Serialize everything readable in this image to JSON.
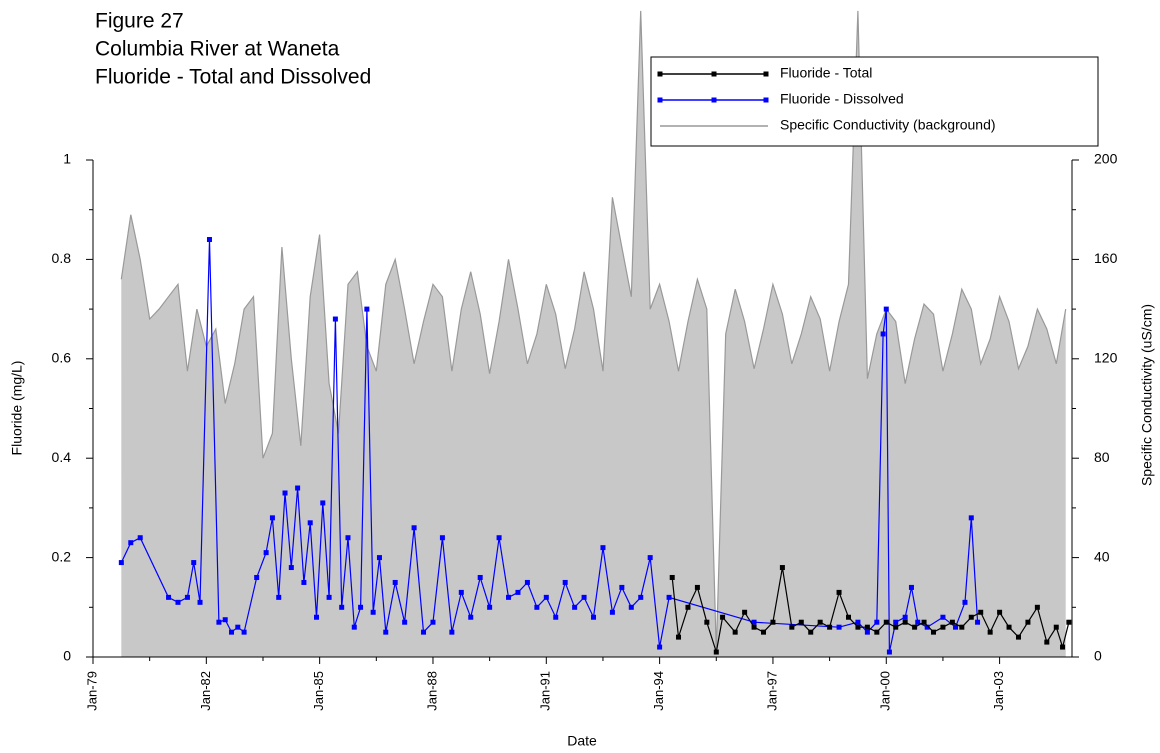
{
  "chart_data": {
    "type": "line",
    "title": [
      "Figure 27",
      "Columbia River at Waneta",
      "Fluoride - Total and Dissolved"
    ],
    "x_label": "Date",
    "y_label": "Fluoride (mg/L)",
    "y2_label": "Specific Conductivity (uS/cm)",
    "xlim": [
      "1979-01",
      "2004-12"
    ],
    "xticks": [
      {
        "value": "1979-01",
        "label": "Jan-79"
      },
      {
        "value": "1982-01",
        "label": "Jan-82"
      },
      {
        "value": "1985-01",
        "label": "Jan-85"
      },
      {
        "value": "1988-01",
        "label": "Jan-88"
      },
      {
        "value": "1991-01",
        "label": "Jan-91"
      },
      {
        "value": "1994-01",
        "label": "Jan-94"
      },
      {
        "value": "1997-01",
        "label": "Jan-97"
      },
      {
        "value": "2000-01",
        "label": "Jan-00"
      },
      {
        "value": "2003-01",
        "label": "Jan-03"
      }
    ],
    "ylim": [
      0,
      1
    ],
    "yticks": [
      0,
      0.2,
      0.4,
      0.6,
      0.8,
      1
    ],
    "y2lim": [
      0,
      200
    ],
    "y2ticks": [
      0,
      40,
      80,
      120,
      160,
      200
    ],
    "series": [
      {
        "name": "Fluoride - Total",
        "color": "#000000",
        "style": "line-marker",
        "x": [
          "1994-05",
          "1994-07",
          "1994-10",
          "1995-01",
          "1995-04",
          "1995-07",
          "1995-09",
          "1996-01",
          "1996-04",
          "1996-07",
          "1996-10",
          "1997-01",
          "1997-04",
          "1997-07",
          "1997-10",
          "1998-01",
          "1998-04",
          "1998-07",
          "1998-10",
          "1999-01",
          "1999-04",
          "1999-07",
          "1999-10",
          "2000-01",
          "2000-04",
          "2000-07",
          "2000-10",
          "2001-01",
          "2001-04",
          "2001-07",
          "2001-10",
          "2002-01",
          "2002-04",
          "2002-07",
          "2002-10",
          "2003-01",
          "2003-04",
          "2003-07",
          "2003-10",
          "2004-01",
          "2004-04",
          "2004-07",
          "2004-09",
          "2004-11"
        ],
        "values": [
          0.16,
          0.04,
          0.1,
          0.14,
          0.07,
          0.01,
          0.08,
          0.05,
          0.09,
          0.06,
          0.05,
          0.07,
          0.18,
          0.06,
          0.07,
          0.05,
          0.07,
          0.06,
          0.13,
          0.08,
          0.06,
          0.06,
          0.05,
          0.07,
          0.06,
          0.07,
          0.06,
          0.07,
          0.05,
          0.06,
          0.07,
          0.06,
          0.08,
          0.09,
          0.05,
          0.09,
          0.06,
          0.04,
          0.07,
          0.1,
          0.03,
          0.06,
          0.02,
          0.07
        ]
      },
      {
        "name": "Fluoride - Dissolved",
        "color": "#0000ff",
        "style": "line-marker",
        "x": [
          "1979-10",
          "1980-01",
          "1980-04",
          "1981-01",
          "1981-04",
          "1981-07",
          "1981-09",
          "1981-11",
          "1982-02",
          "1982-05",
          "1982-07",
          "1982-09",
          "1982-11",
          "1983-01",
          "1983-05",
          "1983-08",
          "1983-10",
          "1983-12",
          "1984-02",
          "1984-04",
          "1984-06",
          "1984-08",
          "1984-10",
          "1984-12",
          "1985-02",
          "1985-04",
          "1985-06",
          "1985-08",
          "1985-10",
          "1985-12",
          "1986-02",
          "1986-04",
          "1986-06",
          "1986-08",
          "1986-10",
          "1987-01",
          "1987-04",
          "1987-07",
          "1987-10",
          "1988-01",
          "1988-04",
          "1988-07",
          "1988-10",
          "1989-01",
          "1989-04",
          "1989-07",
          "1989-10",
          "1990-01",
          "1990-04",
          "1990-07",
          "1990-10",
          "1991-01",
          "1991-04",
          "1991-07",
          "1991-10",
          "1992-01",
          "1992-04",
          "1992-07",
          "1992-10",
          "1993-01",
          "1993-04",
          "1993-07",
          "1993-10",
          "1994-01",
          "1994-04",
          "1996-07",
          "1998-10",
          "1999-04",
          "1999-07",
          "1999-10",
          "1999-12",
          "2000-01",
          "2000-02",
          "2000-04",
          "2000-07",
          "2000-09",
          "2000-11",
          "2001-02",
          "2001-07",
          "2001-11",
          "2002-02",
          "2002-04",
          "2002-06"
        ],
        "values": [
          0.19,
          0.23,
          0.24,
          0.12,
          0.11,
          0.12,
          0.19,
          0.11,
          0.84,
          0.07,
          0.075,
          0.05,
          0.06,
          0.05,
          0.16,
          0.21,
          0.28,
          0.12,
          0.33,
          0.18,
          0.34,
          0.15,
          0.27,
          0.08,
          0.31,
          0.12,
          0.68,
          0.1,
          0.24,
          0.06,
          0.1,
          0.7,
          0.09,
          0.2,
          0.05,
          0.15,
          0.07,
          0.26,
          0.05,
          0.07,
          0.24,
          0.05,
          0.13,
          0.08,
          0.16,
          0.1,
          0.24,
          0.12,
          0.13,
          0.15,
          0.1,
          0.12,
          0.08,
          0.15,
          0.1,
          0.12,
          0.08,
          0.22,
          0.09,
          0.14,
          0.1,
          0.12,
          0.2,
          0.02,
          0.12,
          0.07,
          0.06,
          0.07,
          0.05,
          0.07,
          0.65,
          0.7,
          0.01,
          0.07,
          0.08,
          0.14,
          0.07,
          0.06,
          0.08,
          0.06,
          0.11,
          0.28,
          0.07
        ]
      },
      {
        "name": "Specific Conductivity (background)",
        "color": "#999999",
        "fill": "#c8c8c8",
        "style": "area",
        "axis": "y2",
        "x": [
          "1979-10",
          "1980-01",
          "1980-04",
          "1980-07",
          "1980-10",
          "1981-01",
          "1981-04",
          "1981-07",
          "1981-10",
          "1982-01",
          "1982-04",
          "1982-07",
          "1982-10",
          "1983-01",
          "1983-04",
          "1983-07",
          "1983-10",
          "1984-01",
          "1984-04",
          "1984-07",
          "1984-10",
          "1985-01",
          "1985-04",
          "1985-07",
          "1985-10",
          "1986-01",
          "1986-04",
          "1986-07",
          "1986-10",
          "1987-01",
          "1987-04",
          "1987-07",
          "1987-10",
          "1988-01",
          "1988-04",
          "1988-07",
          "1988-10",
          "1989-01",
          "1989-04",
          "1989-07",
          "1989-10",
          "1990-01",
          "1990-04",
          "1990-07",
          "1990-10",
          "1991-01",
          "1991-04",
          "1991-07",
          "1991-10",
          "1992-01",
          "1992-04",
          "1992-07",
          "1992-10",
          "1993-01",
          "1993-04",
          "1993-07",
          "1993-10",
          "1994-01",
          "1994-04",
          "1994-07",
          "1994-10",
          "1995-01",
          "1995-04",
          "1995-07",
          "1995-10",
          "1996-01",
          "1996-04",
          "1996-07",
          "1996-10",
          "1997-01",
          "1997-04",
          "1997-07",
          "1997-10",
          "1998-01",
          "1998-04",
          "1998-07",
          "1998-10",
          "1999-01",
          "1999-04",
          "1999-07",
          "1999-10",
          "2000-01",
          "2000-04",
          "2000-07",
          "2000-10",
          "2001-01",
          "2001-04",
          "2001-07",
          "2001-10",
          "2002-01",
          "2002-04",
          "2002-07",
          "2002-10",
          "2003-01",
          "2003-04",
          "2003-07",
          "2003-10",
          "2004-01",
          "2004-04",
          "2004-07",
          "2004-10"
        ],
        "values": [
          152,
          178,
          160,
          136,
          140,
          145,
          150,
          115,
          140,
          125,
          132,
          102,
          118,
          140,
          145,
          80,
          90,
          165,
          120,
          85,
          145,
          170,
          110,
          90,
          150,
          155,
          125,
          115,
          150,
          160,
          140,
          118,
          135,
          150,
          145,
          115,
          140,
          155,
          138,
          114,
          135,
          160,
          140,
          118,
          130,
          150,
          138,
          116,
          132,
          155,
          140,
          115,
          185,
          165,
          145,
          260,
          140,
          150,
          135,
          115,
          135,
          152,
          140,
          2,
          130,
          148,
          135,
          116,
          132,
          150,
          138,
          118,
          130,
          145,
          136,
          115,
          135,
          150,
          260,
          112,
          130,
          140,
          135,
          110,
          128,
          142,
          138,
          115,
          130,
          148,
          140,
          118,
          128,
          145,
          135,
          116,
          125,
          140,
          132,
          118,
          140
        ]
      }
    ]
  }
}
